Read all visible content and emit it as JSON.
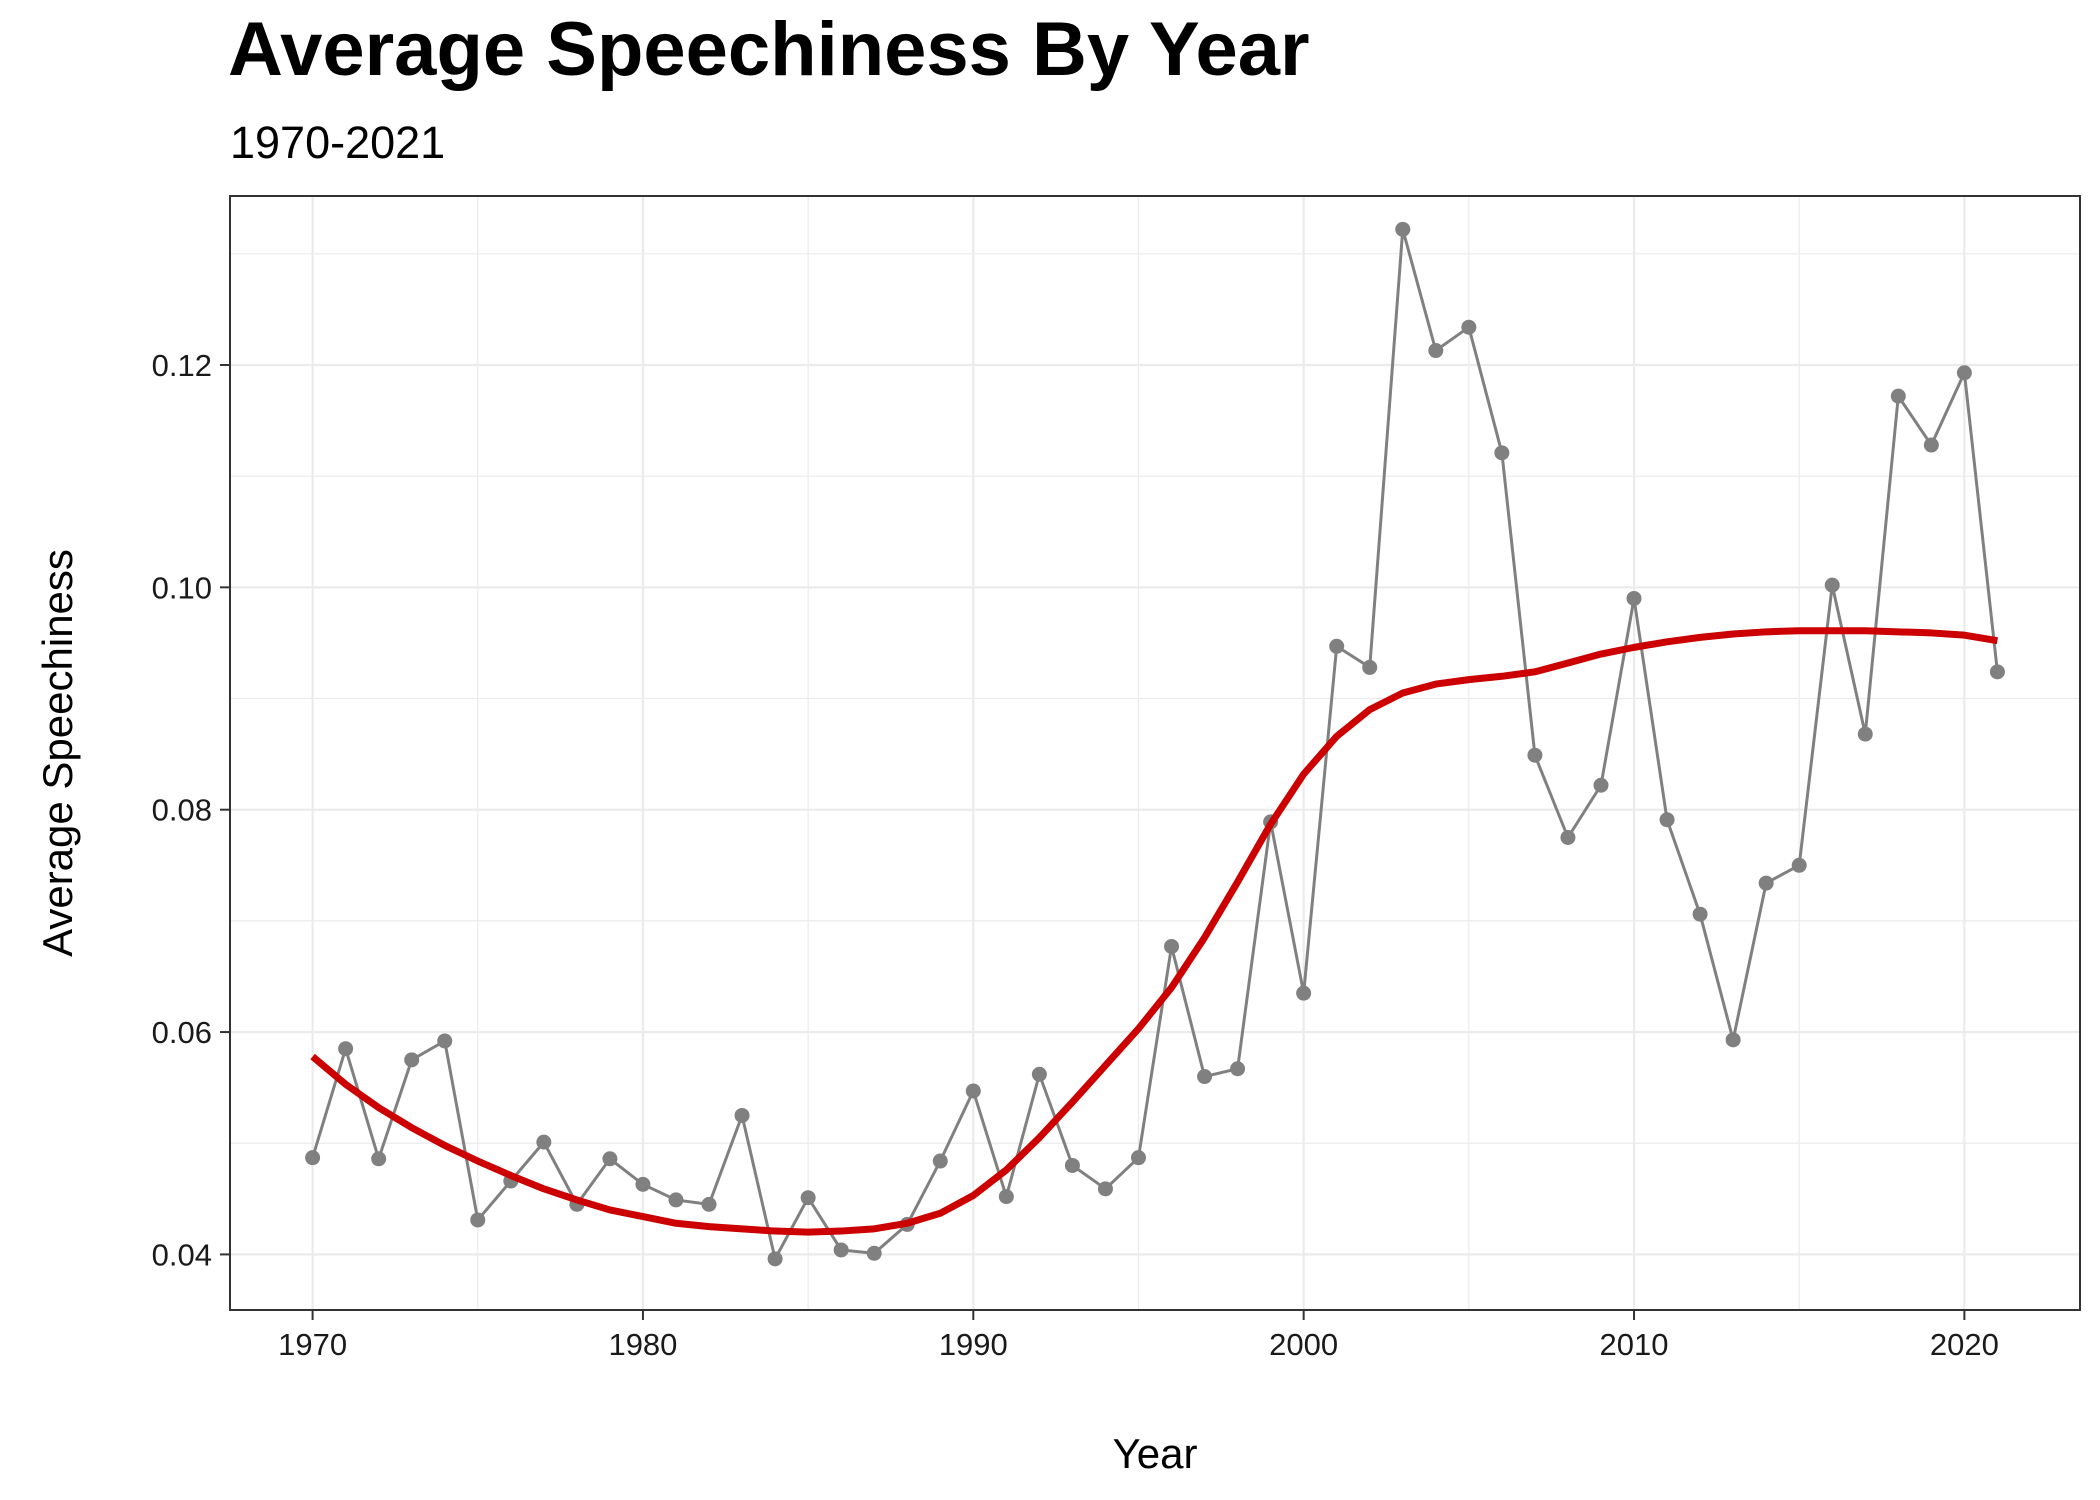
{
  "chart_data": {
    "type": "line",
    "title": "Average Speechiness By Year",
    "subtitle": "1970-2021",
    "xlabel": "Year",
    "ylabel": "Average Speechiness",
    "xlim": [
      1967.5,
      2023.5
    ],
    "ylim": [
      0.035,
      0.1352
    ],
    "x_ticks": [
      1970,
      1980,
      1990,
      2000,
      2010,
      2020
    ],
    "y_ticks": [
      0.04,
      0.06,
      0.08,
      0.1,
      0.12
    ],
    "y_tick_labels": [
      "0.04",
      "0.06",
      "0.08",
      "0.10",
      "0.12"
    ],
    "grid": true,
    "legend": "none",
    "colors": {
      "points": "#808080",
      "smooth": "#cc0000",
      "grid": "#ebebeb",
      "panel_border": "#333333"
    },
    "series": [
      {
        "type": "line+points",
        "x": [
          1970,
          1971,
          1972,
          1973,
          1974,
          1975,
          1976,
          1977,
          1978,
          1979,
          1980,
          1981,
          1982,
          1983,
          1984,
          1985,
          1986,
          1987,
          1988,
          1989,
          1990,
          1991,
          1992,
          1993,
          1994,
          1995,
          1996,
          1997,
          1998,
          1999,
          2000,
          2001,
          2002,
          2003,
          2004,
          2005,
          2006,
          2007,
          2008,
          2009,
          2010,
          2011,
          2012,
          2013,
          2014,
          2015,
          2016,
          2017,
          2018,
          2019,
          2020,
          2021
        ],
        "values": [
          0.0487,
          0.0585,
          0.0486,
          0.0575,
          0.0592,
          0.0431,
          0.0466,
          0.0501,
          0.0445,
          0.0486,
          0.0463,
          0.0449,
          0.0445,
          0.0525,
          0.0396,
          0.0451,
          0.0404,
          0.0401,
          0.0427,
          0.0484,
          0.0547,
          0.0452,
          0.0562,
          0.048,
          0.0459,
          0.0487,
          0.0677,
          0.056,
          0.0567,
          0.0789,
          0.0635,
          0.0947,
          0.0928,
          0.1322,
          0.1213,
          0.1234,
          0.1121,
          0.0849,
          0.0775,
          0.0822,
          0.099,
          0.0791,
          0.0706,
          0.0593,
          0.0734,
          0.075,
          0.1002,
          0.0868,
          0.1172,
          0.1128,
          0.1193,
          0.0924
        ]
      },
      {
        "type": "smooth",
        "x": [
          1970,
          1971,
          1972,
          1973,
          1974,
          1975,
          1976,
          1977,
          1978,
          1979,
          1980,
          1981,
          1982,
          1983,
          1984,
          1985,
          1986,
          1987,
          1988,
          1989,
          1990,
          1991,
          1992,
          1993,
          1994,
          1995,
          1996,
          1997,
          1998,
          1999,
          2000,
          2001,
          2002,
          2003,
          2004,
          2005,
          2006,
          2007,
          2008,
          2009,
          2010,
          2011,
          2012,
          2013,
          2014,
          2015,
          2016,
          2017,
          2018,
          2019,
          2020,
          2021
        ],
        "values": [
          0.0578,
          0.0553,
          0.0532,
          0.0514,
          0.0498,
          0.0484,
          0.0471,
          0.0459,
          0.0449,
          0.044,
          0.0434,
          0.0428,
          0.0425,
          0.0423,
          0.0421,
          0.042,
          0.0421,
          0.0423,
          0.0428,
          0.0437,
          0.0453,
          0.0476,
          0.0505,
          0.0537,
          0.057,
          0.0603,
          0.064,
          0.0685,
          0.0735,
          0.0787,
          0.0832,
          0.0866,
          0.089,
          0.0905,
          0.0913,
          0.0917,
          0.092,
          0.0924,
          0.0932,
          0.094,
          0.0946,
          0.0951,
          0.0955,
          0.0958,
          0.096,
          0.0961,
          0.0961,
          0.0961,
          0.096,
          0.0959,
          0.0957,
          0.0952
        ]
      }
    ]
  }
}
